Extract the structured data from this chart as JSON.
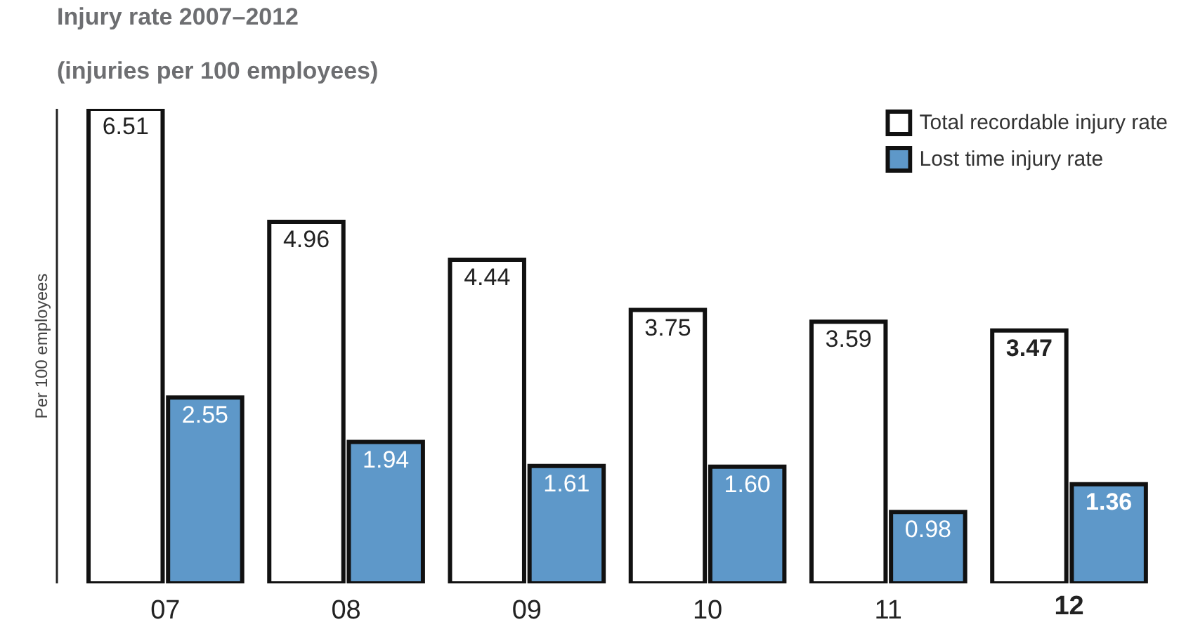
{
  "chart_data": {
    "type": "bar",
    "title": "Injury rate 2007–2012",
    "subtitle": "(injuries per 100 employees)",
    "ylabel": "Per 100 employees",
    "categories": [
      "07",
      "08",
      "09",
      "10",
      "11",
      "12"
    ],
    "series": [
      {
        "name": "Total recordable injury rate",
        "color": "#ffffff",
        "values": [
          6.51,
          4.96,
          4.44,
          3.75,
          3.59,
          3.47
        ],
        "value_labels": [
          "6.51",
          "4.96",
          "4.44",
          "3.75",
          "3.59",
          "3.47"
        ]
      },
      {
        "name": "Lost time injury rate",
        "color": "#5e98c9",
        "values": [
          2.55,
          1.94,
          1.61,
          1.6,
          0.98,
          1.36
        ],
        "value_labels": [
          "2.55",
          "1.94",
          "1.61",
          "1.60",
          "0.98",
          "1.36"
        ]
      }
    ],
    "ylim": [
      0,
      6.51
    ],
    "grid": false,
    "legend": "top right",
    "tick_labels": "x"
  }
}
